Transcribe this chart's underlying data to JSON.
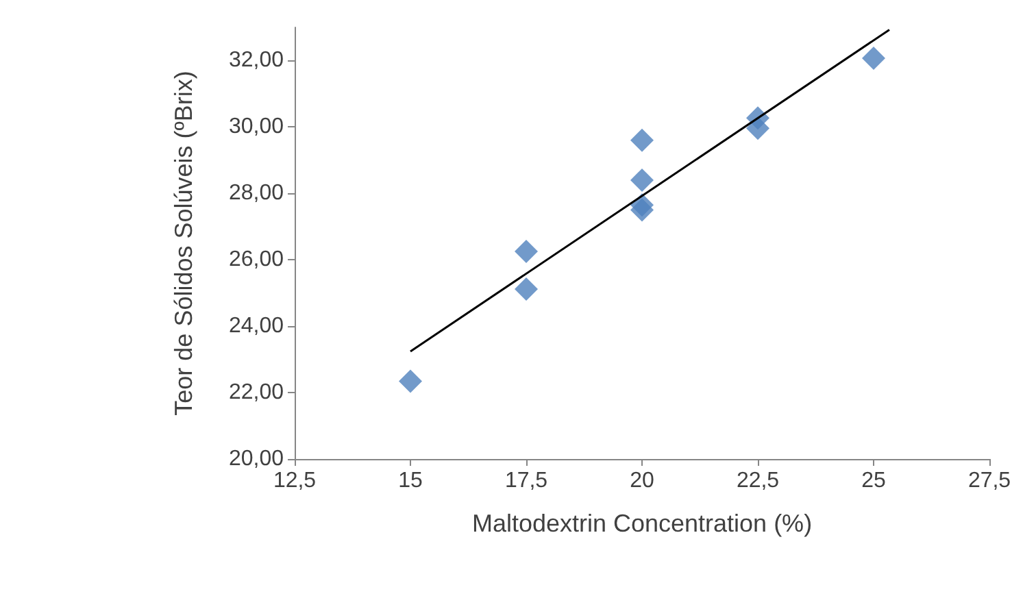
{
  "chart_data": {
    "type": "scatter",
    "xlabel": "Maltodextrin Concentration (%)",
    "ylabel": "Teor de Sólidos Solúveis (ºBrix)",
    "marker": "diamond",
    "grid": false,
    "xlim": [
      12.5,
      27.5
    ],
    "xticks": [
      {
        "value": 12.5,
        "label": "12,5"
      },
      15,
      {
        "value": 17.5,
        "label": "17,5"
      },
      20,
      {
        "value": 22.5,
        "label": "22,5"
      },
      25,
      {
        "value": 27.5,
        "label": "27,5"
      }
    ],
    "ylim": [
      20,
      33
    ],
    "yticks": [
      {
        "value": 20,
        "label": "20,00"
      },
      {
        "value": 22,
        "label": "22,00"
      },
      {
        "value": 24,
        "label": "24,00"
      },
      {
        "value": 26,
        "label": "26,00"
      },
      {
        "value": 28,
        "label": "28,00"
      },
      {
        "value": 30,
        "label": "30,00"
      },
      {
        "value": 32,
        "label": "32,00"
      }
    ],
    "series": [
      {
        "color": "#4f81bd",
        "x": [
          15,
          17.5,
          17.5,
          20,
          20,
          20,
          20,
          22.5,
          22.5,
          25
        ],
        "values": [
          22.34,
          26.25,
          25.12,
          29.6,
          28.4,
          27.65,
          27.5,
          30.27,
          29.96,
          32.07
        ]
      },
      {
        "type": "line",
        "color": "#000000",
        "marker": "none",
        "x": [
          15,
          25.34
        ],
        "values": [
          23.24,
          32.93
        ]
      }
    ]
  }
}
